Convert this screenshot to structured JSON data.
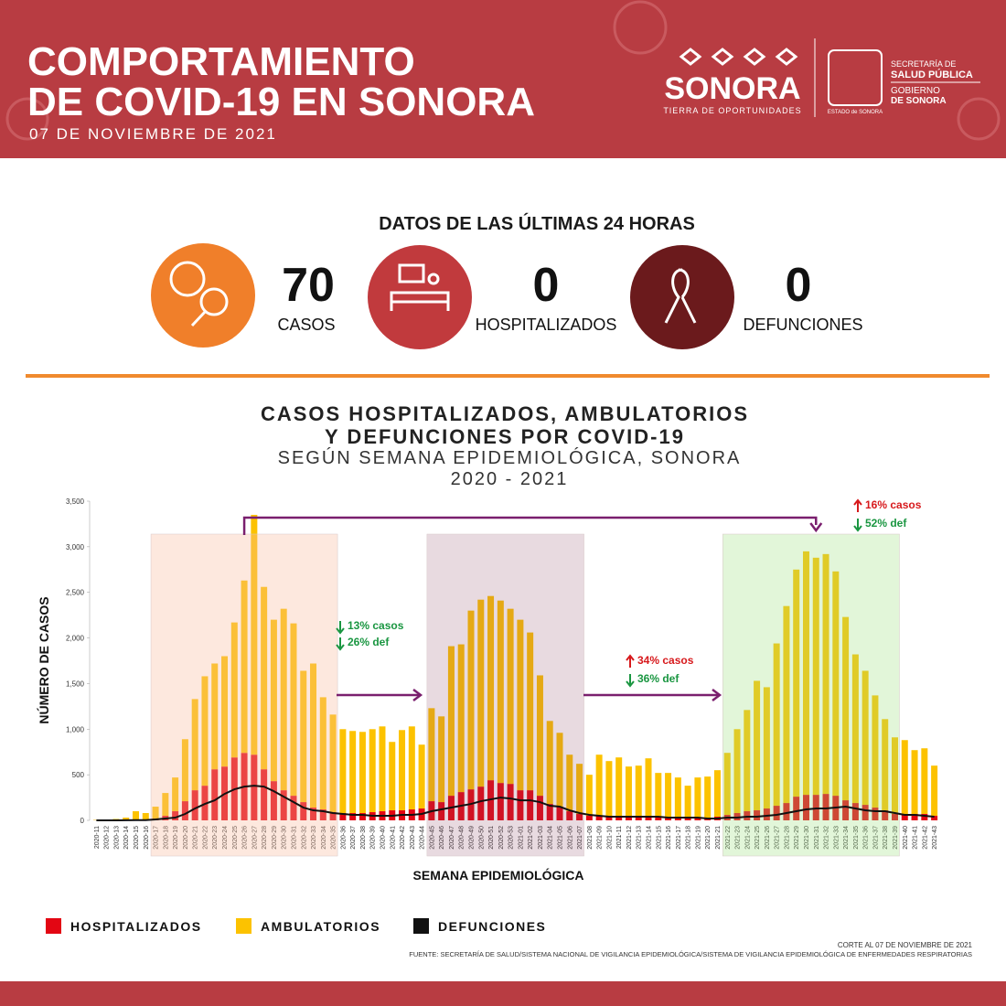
{
  "header": {
    "title": [
      "COMPORTAMIENTO",
      "DE COVID-19 EN SONORA"
    ],
    "date": "07 DE NOVIEMBRE DE 2021",
    "logo": {
      "name": "SONORA",
      "tagline": "TIERRA DE OPORTUNIDADES",
      "shield_caption": "ESTADO de SONORA",
      "secretaria": [
        "SECRETARÍA DE",
        "SALUD PÚBLICA"
      ],
      "gobierno": [
        "GOBIERNO",
        "DE SONORA"
      ]
    }
  },
  "stats": {
    "heading": "DATOS DE LAS ÚLTIMAS 24 HORAS",
    "items": [
      {
        "value": 70,
        "label": "CASOS"
      },
      {
        "value": 0,
        "label": "HOSPITALIZADOS"
      },
      {
        "value": 0,
        "label": "DEFUNCIONES"
      }
    ]
  },
  "chart_data": {
    "type": "bar",
    "stacked": true,
    "title": [
      "CASOS HOSPITALIZADOS, AMBULATORIOS",
      "Y DEFUNCIONES POR COVID-19"
    ],
    "subtitle": [
      "SEGÚN SEMANA EPIDEMIOLÓGICA, SONORA",
      "2020 - 2021"
    ],
    "y_label": "NÚMERO DE CASOS",
    "x_label": "SEMANA EPIDEMIOLÓGICA",
    "categories": [
      "2020-11",
      "2020-12",
      "2020-13",
      "2020-14",
      "2020-15",
      "2020-16",
      "2020-17",
      "2020-18",
      "2020-19",
      "2020-20",
      "2020-21",
      "2020-22",
      "2020-23",
      "2020-24",
      "2020-25",
      "2020-26",
      "2020-27",
      "2020-28",
      "2020-29",
      "2020-30",
      "2020-31",
      "2020-32",
      "2020-33",
      "2020-34",
      "2020-35",
      "2020-36",
      "2020-37",
      "2020-38",
      "2020-39",
      "2020-40",
      "2020-41",
      "2020-42",
      "2020-43",
      "2020-44",
      "2020-45",
      "2020-46",
      "2020-47",
      "2020-48",
      "2020-49",
      "2020-50",
      "2020-51",
      "2020-52",
      "2020-53",
      "2021-01",
      "2021-02",
      "2021-03",
      "2021-04",
      "2021-05",
      "2021-06",
      "2021-07",
      "2021-08",
      "2021-09",
      "2021-10",
      "2021-11",
      "2021-12",
      "2021-13",
      "2021-14",
      "2021-15",
      "2021-16",
      "2021-17",
      "2021-18",
      "2021-19",
      "2021-20",
      "2021-21",
      "2021-22",
      "2021-23",
      "2021-24",
      "2021-25",
      "2021-26",
      "2021-27",
      "2021-28",
      "2021-29",
      "2021-30",
      "2021-31",
      "2021-32",
      "2021-33",
      "2021-34",
      "2021-35",
      "2021-36",
      "2021-37",
      "2021-38",
      "2021-39",
      "2021-40",
      "2021-41",
      "2021-42",
      "2021-43"
    ],
    "series": [
      {
        "name": "HOSPITALIZADOS",
        "color": "#e30613",
        "type": "bar",
        "values": [
          1,
          2,
          3,
          5,
          10,
          10,
          20,
          50,
          100,
          210,
          330,
          380,
          560,
          590,
          690,
          740,
          720,
          560,
          430,
          330,
          270,
          200,
          140,
          120,
          90,
          80,
          80,
          80,
          90,
          100,
          110,
          110,
          120,
          130,
          210,
          200,
          270,
          310,
          340,
          370,
          440,
          410,
          400,
          330,
          330,
          270,
          180,
          150,
          100,
          70,
          50,
          50,
          50,
          40,
          40,
          40,
          50,
          40,
          30,
          30,
          20,
          30,
          30,
          40,
          60,
          80,
          100,
          110,
          130,
          160,
          190,
          260,
          280,
          280,
          290,
          270,
          220,
          190,
          170,
          140,
          110,
          70,
          60,
          70,
          70,
          50
        ]
      },
      {
        "name": "AMBULATORIOS",
        "color": "#fcc200",
        "type": "bar",
        "values": [
          4,
          8,
          12,
          25,
          90,
          70,
          130,
          250,
          370,
          680,
          1000,
          1200,
          1160,
          1210,
          1480,
          1890,
          2630,
          2000,
          1770,
          1990,
          1890,
          1440,
          1580,
          1230,
          1070,
          920,
          900,
          890,
          910,
          930,
          750,
          880,
          910,
          700,
          1020,
          940,
          1640,
          1620,
          1960,
          2050,
          2020,
          2000,
          1920,
          1870,
          1730,
          1320,
          910,
          810,
          620,
          550,
          450,
          670,
          600,
          650,
          550,
          560,
          630,
          480,
          490,
          440,
          360,
          440,
          450,
          510,
          680,
          920,
          1110,
          1420,
          1330,
          1780,
          2160,
          2490,
          2670,
          2600,
          2630,
          2460,
          2010,
          1630,
          1470,
          1230,
          1000,
          840,
          820,
          700,
          720,
          550
        ]
      },
      {
        "name": "DEFUNCIONES",
        "color": "#111111",
        "type": "line",
        "values": [
          0,
          0,
          0,
          1,
          2,
          3,
          10,
          20,
          30,
          70,
          130,
          180,
          220,
          290,
          340,
          370,
          380,
          370,
          320,
          260,
          200,
          140,
          110,
          100,
          80,
          70,
          60,
          60,
          50,
          50,
          50,
          60,
          60,
          70,
          100,
          120,
          140,
          160,
          180,
          210,
          230,
          250,
          240,
          220,
          220,
          200,
          160,
          150,
          110,
          80,
          60,
          50,
          40,
          40,
          40,
          40,
          40,
          40,
          30,
          30,
          30,
          30,
          20,
          20,
          30,
          30,
          40,
          40,
          50,
          60,
          80,
          100,
          120,
          130,
          130,
          140,
          150,
          130,
          110,
          100,
          100,
          80,
          60,
          60,
          50,
          40
        ]
      }
    ],
    "ylim": [
      0,
      3500
    ],
    "yticks": [
      0,
      500,
      {
        "value": 1000,
        "label": "1,000"
      },
      {
        "value": 1500,
        "label": "1,500"
      },
      {
        "value": 2000,
        "label": "2,000"
      },
      {
        "value": 2500,
        "label": "2,500"
      },
      {
        "value": 3000,
        "label": "3,000"
      },
      {
        "value": 3500,
        "label": "3,500"
      }
    ],
    "annotations": [
      {
        "text": "16% casos",
        "color": "#d7191c"
      },
      {
        "text": "52% def",
        "color": "#1a9641"
      },
      {
        "text": "13% casos",
        "color": "#1a9641"
      },
      {
        "text": "26% def",
        "color": "#1a9641"
      },
      {
        "text": "34% casos",
        "color": "#d7191c"
      },
      {
        "text": "36% def",
        "color": "#1a9641"
      }
    ]
  },
  "footer": {
    "cutoff": "CORTE AL 07 DE NOVIEMBRE DE 2021",
    "source": "FUENTE: SECRETARÍA DE SALUD/SISTEMA NACIONAL DE VIGILANCIA EPIDEMIOLÓGICA/SISTEMA DE VIGILANCIA EPIDEMIOLÓGICA DE ENFERMEDADES RESPIRATORIAS"
  }
}
